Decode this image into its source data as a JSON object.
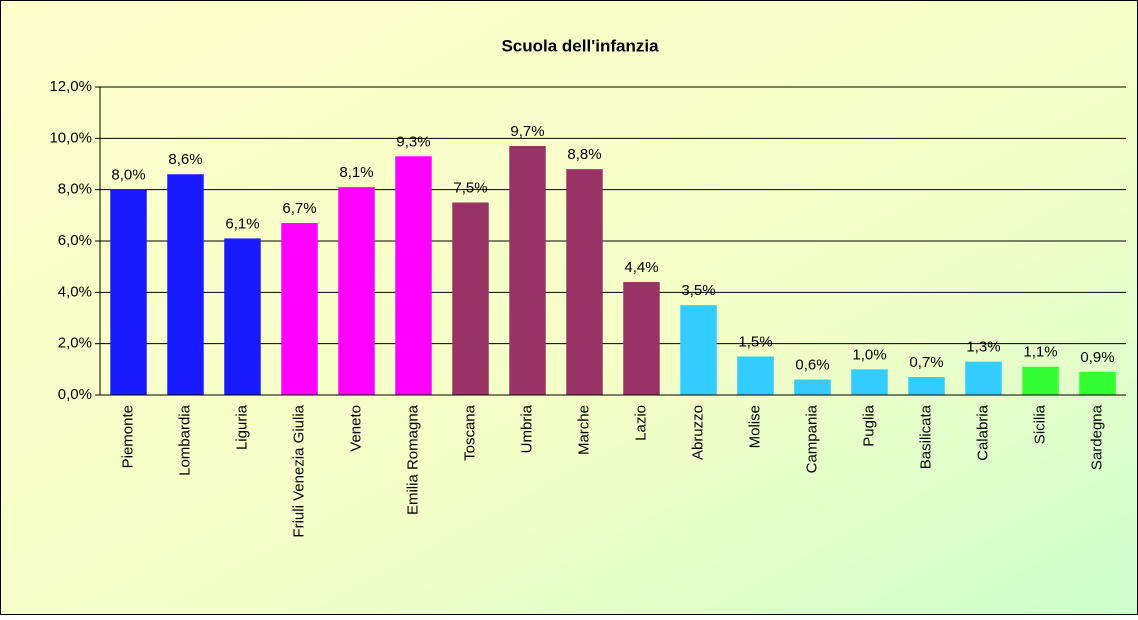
{
  "chart_data": {
    "type": "bar",
    "title": "Scuola dell'infanzia",
    "categories": [
      "Piemonte",
      "Lombardia",
      "Liguria",
      "Friuli Venezia Giulia",
      "Veneto",
      "Emilia Romagna",
      "Toscana",
      "Umbria",
      "Marche",
      "Lazio",
      "Abruzzo",
      "Molise",
      "Campania",
      "Puglia",
      "Basilicata",
      "Calabria",
      "Sicilia",
      "Sardegna"
    ],
    "values": [
      8.0,
      8.6,
      6.1,
      6.7,
      8.1,
      9.3,
      7.5,
      9.7,
      8.8,
      4.4,
      3.5,
      1.5,
      0.6,
      1.0,
      0.7,
      1.3,
      1.1,
      0.9
    ],
    "value_labels": [
      "8,0%",
      "8,6%",
      "6,1%",
      "6,7%",
      "8,1%",
      "9,3%",
      "7,5%",
      "9,7%",
      "8,8%",
      "4,4%",
      "3,5%",
      "1,5%",
      "0,6%",
      "1,0%",
      "0,7%",
      "1,3%",
      "1,1%",
      "0,9%"
    ],
    "colors": [
      "#1a1aff",
      "#1a1aff",
      "#1a1aff",
      "#ff00ff",
      "#ff00ff",
      "#ff00ff",
      "#993366",
      "#993366",
      "#993366",
      "#993366",
      "#33ccff",
      "#33ccff",
      "#33ccff",
      "#33ccff",
      "#33ccff",
      "#33ccff",
      "#33ff33",
      "#33ff33"
    ],
    "ylim": [
      0,
      12
    ],
    "yticks": [
      {
        "value": 0,
        "label": "0,0%"
      },
      {
        "value": 2,
        "label": "2,0%"
      },
      {
        "value": 4,
        "label": "4,0%"
      },
      {
        "value": 6,
        "label": "6,0%"
      },
      {
        "value": 8,
        "label": "8,0%"
      },
      {
        "value": 10,
        "label": "10,0%"
      },
      {
        "value": 12,
        "label": "12,0%"
      }
    ],
    "grid": true
  }
}
